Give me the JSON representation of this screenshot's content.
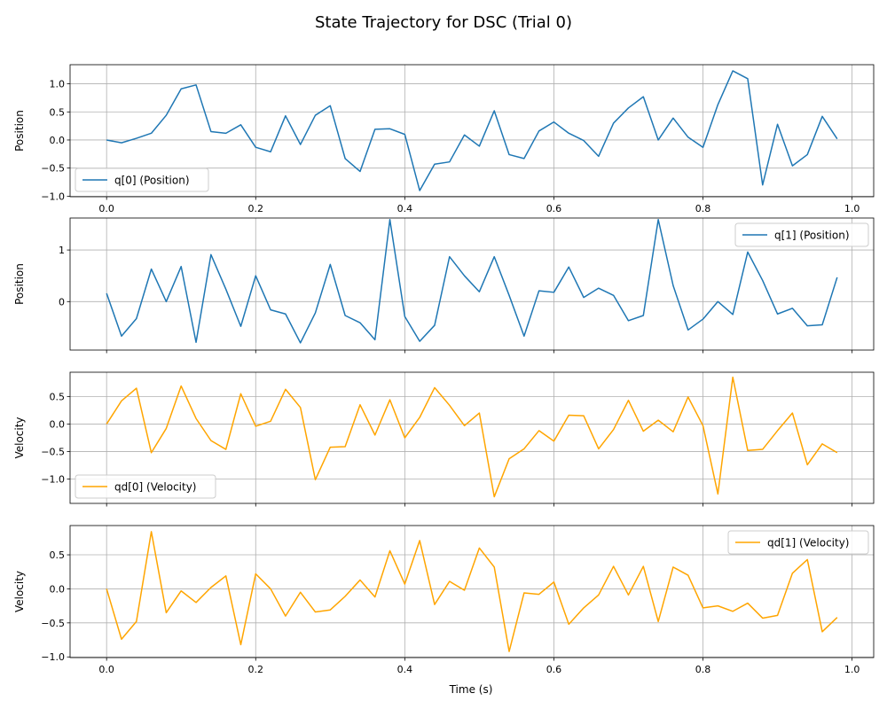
{
  "figure": {
    "title": "State Trajectory for DSC (Trial 0)",
    "xlabel": "Time (s)"
  },
  "chart_data": [
    {
      "type": "line",
      "ylabel": "Position",
      "xlim": [
        -0.049,
        1.029
      ],
      "ylim": [
        -1.01,
        1.34
      ],
      "xticks": [
        0.0,
        0.2,
        0.4,
        0.6,
        0.8,
        1.0
      ],
      "xtick_labels": [
        "0.0",
        "0.2",
        "0.4",
        "0.6",
        "0.8",
        "1.0"
      ],
      "yticks": [
        -1.0,
        -0.5,
        0.0,
        0.5,
        1.0
      ],
      "ytick_labels": [
        "−1.0",
        "−0.5",
        "0.0",
        "0.5",
        "1.0"
      ],
      "grid": true,
      "legend_position": "lower-left",
      "series": [
        {
          "name": "q[0] (Position)",
          "color": "#1f77b4",
          "x": [
            0.0,
            0.02,
            0.04,
            0.06,
            0.08,
            0.1,
            0.12,
            0.14,
            0.16,
            0.18,
            0.2,
            0.22,
            0.24,
            0.26,
            0.28,
            0.3,
            0.32,
            0.34,
            0.36,
            0.38,
            0.4,
            0.42,
            0.44,
            0.46,
            0.48,
            0.5,
            0.52,
            0.54,
            0.56,
            0.58,
            0.6,
            0.62,
            0.64,
            0.66,
            0.68,
            0.7,
            0.72,
            0.74,
            0.76,
            0.78,
            0.8,
            0.82,
            0.84,
            0.86,
            0.88,
            0.9,
            0.92,
            0.94,
            0.96,
            0.98
          ],
          "y": [
            0.0,
            -0.05,
            0.03,
            0.12,
            0.44,
            0.91,
            0.98,
            0.15,
            0.12,
            0.27,
            -0.13,
            -0.21,
            0.43,
            -0.08,
            0.44,
            0.61,
            -0.33,
            -0.56,
            0.19,
            0.2,
            0.1,
            -0.9,
            -0.43,
            -0.39,
            0.09,
            -0.11,
            0.52,
            -0.26,
            -0.33,
            0.16,
            0.32,
            0.12,
            -0.01,
            -0.29,
            0.3,
            0.57,
            0.77,
            0.0,
            0.39,
            0.05,
            -0.13,
            0.63,
            1.23,
            1.09,
            -0.8,
            0.28,
            -0.46,
            -0.26,
            0.42,
            0.02
          ]
        }
      ]
    },
    {
      "type": "line",
      "ylabel": "Position",
      "xlim": [
        -0.049,
        1.029
      ],
      "ylim": [
        -0.94,
        1.62
      ],
      "xticks": [
        0.0,
        0.2,
        0.4,
        0.6,
        0.8,
        1.0
      ],
      "xtick_labels": [
        "",
        "",
        "",
        "",
        "",
        ""
      ],
      "yticks": [
        0,
        1
      ],
      "ytick_labels": [
        "0",
        "1"
      ],
      "grid": true,
      "legend_position": "upper-right",
      "series": [
        {
          "name": "q[1] (Position)",
          "color": "#1f77b4",
          "x": [
            0.0,
            0.02,
            0.04,
            0.06,
            0.08,
            0.1,
            0.12,
            0.14,
            0.16,
            0.18,
            0.2,
            0.22,
            0.24,
            0.26,
            0.28,
            0.3,
            0.32,
            0.34,
            0.36,
            0.38,
            0.4,
            0.42,
            0.44,
            0.46,
            0.48,
            0.5,
            0.52,
            0.54,
            0.56,
            0.58,
            0.6,
            0.62,
            0.64,
            0.66,
            0.68,
            0.7,
            0.72,
            0.74,
            0.76,
            0.78,
            0.8,
            0.82,
            0.84,
            0.86,
            0.88,
            0.9,
            0.92,
            0.94,
            0.96,
            0.98
          ],
          "y": [
            0.16,
            -0.67,
            -0.33,
            0.63,
            0.0,
            0.68,
            -0.79,
            0.91,
            0.24,
            -0.48,
            0.5,
            -0.16,
            -0.24,
            -0.8,
            -0.22,
            0.72,
            -0.27,
            -0.41,
            -0.74,
            1.59,
            -0.29,
            -0.77,
            -0.46,
            0.87,
            0.5,
            0.19,
            0.87,
            0.12,
            -0.67,
            0.21,
            0.18,
            0.67,
            0.08,
            0.26,
            0.12,
            -0.37,
            -0.27,
            1.59,
            0.31,
            -0.55,
            -0.34,
            0.0,
            -0.25,
            0.96,
            0.41,
            -0.24,
            -0.13,
            -0.47,
            -0.45,
            0.47
          ]
        }
      ]
    },
    {
      "type": "line",
      "ylabel": "Velocity",
      "xlim": [
        -0.049,
        1.029
      ],
      "ylim": [
        -1.44,
        0.94
      ],
      "xticks": [
        0.0,
        0.2,
        0.4,
        0.6,
        0.8,
        1.0
      ],
      "xtick_labels": [
        "",
        "",
        "",
        "",
        "",
        ""
      ],
      "yticks": [
        -1.0,
        -0.5,
        0.0,
        0.5
      ],
      "ytick_labels": [
        "−1.0",
        "−0.5",
        "0.0",
        "0.5"
      ],
      "grid": true,
      "legend_position": "lower-left",
      "series": [
        {
          "name": "qd[0] (Velocity)",
          "color": "#ffa500",
          "x": [
            0.0,
            0.02,
            0.04,
            0.06,
            0.08,
            0.1,
            0.12,
            0.14,
            0.16,
            0.18,
            0.2,
            0.22,
            0.24,
            0.26,
            0.28,
            0.3,
            0.32,
            0.34,
            0.36,
            0.38,
            0.4,
            0.42,
            0.44,
            0.46,
            0.48,
            0.5,
            0.52,
            0.54,
            0.56,
            0.58,
            0.6,
            0.62,
            0.64,
            0.66,
            0.68,
            0.7,
            0.72,
            0.74,
            0.76,
            0.78,
            0.8,
            0.82,
            0.84,
            0.86,
            0.88,
            0.9,
            0.92,
            0.94,
            0.96,
            0.98
          ],
          "y": [
            0.0,
            0.42,
            0.65,
            -0.52,
            -0.08,
            0.69,
            0.1,
            -0.3,
            -0.46,
            0.55,
            -0.04,
            0.05,
            0.63,
            0.3,
            -1.01,
            -0.42,
            -0.41,
            0.35,
            -0.2,
            0.44,
            -0.25,
            0.12,
            0.66,
            0.34,
            -0.03,
            0.2,
            -1.32,
            -0.63,
            -0.45,
            -0.12,
            -0.31,
            0.16,
            0.15,
            -0.45,
            -0.1,
            0.43,
            -0.13,
            0.07,
            -0.14,
            0.49,
            -0.03,
            -1.27,
            0.85,
            -0.48,
            -0.46,
            -0.12,
            0.2,
            -0.74,
            -0.36,
            -0.52
          ]
        }
      ]
    },
    {
      "type": "line",
      "ylabel": "Velocity",
      "xlim": [
        -0.049,
        1.029
      ],
      "ylim": [
        -1.01,
        0.93
      ],
      "xticks": [
        0.0,
        0.2,
        0.4,
        0.6,
        0.8,
        1.0
      ],
      "xtick_labels": [
        "0.0",
        "0.2",
        "0.4",
        "0.6",
        "0.8",
        "1.0"
      ],
      "yticks": [
        -1.0,
        -0.5,
        0.0,
        0.5
      ],
      "ytick_labels": [
        "−1.0",
        "−0.5",
        "0.0",
        "0.5"
      ],
      "grid": true,
      "legend_position": "upper-right",
      "series": [
        {
          "name": "qd[1] (Velocity)",
          "color": "#ffa500",
          "x": [
            0.0,
            0.02,
            0.04,
            0.06,
            0.08,
            0.1,
            0.12,
            0.14,
            0.16,
            0.18,
            0.2,
            0.22,
            0.24,
            0.26,
            0.28,
            0.3,
            0.32,
            0.34,
            0.36,
            0.38,
            0.4,
            0.42,
            0.44,
            0.46,
            0.48,
            0.5,
            0.52,
            0.54,
            0.56,
            0.58,
            0.6,
            0.62,
            0.64,
            0.66,
            0.68,
            0.7,
            0.72,
            0.74,
            0.76,
            0.78,
            0.8,
            0.82,
            0.84,
            0.86,
            0.88,
            0.9,
            0.92,
            0.94,
            0.96,
            0.98
          ],
          "y": [
            0.0,
            -0.74,
            -0.48,
            0.84,
            -0.35,
            -0.03,
            -0.2,
            0.02,
            0.19,
            -0.82,
            0.22,
            0.0,
            -0.4,
            -0.05,
            -0.34,
            -0.31,
            -0.11,
            0.13,
            -0.12,
            0.56,
            0.07,
            0.71,
            -0.23,
            0.11,
            -0.02,
            0.6,
            0.32,
            -0.92,
            -0.06,
            -0.08,
            0.1,
            -0.52,
            -0.28,
            -0.09,
            0.33,
            -0.09,
            0.33,
            -0.48,
            0.32,
            0.2,
            -0.28,
            -0.25,
            -0.33,
            -0.21,
            -0.43,
            -0.39,
            0.23,
            0.43,
            -0.63,
            -0.42
          ]
        }
      ]
    }
  ]
}
